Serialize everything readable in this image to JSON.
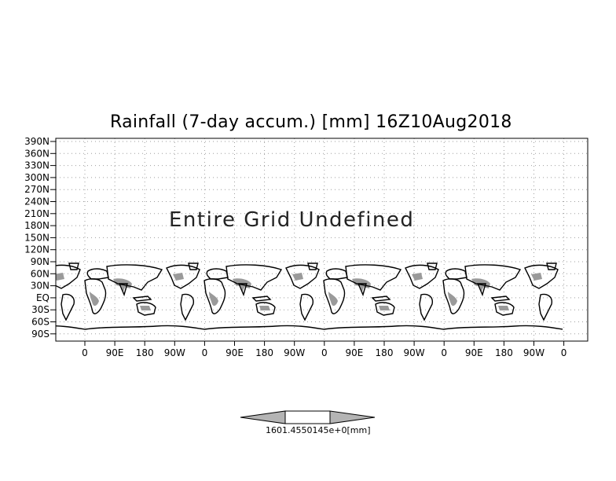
{
  "title": "Rainfall (7-day accum.) [mm] 16Z10Aug2018",
  "undefined_note": "Entire Grid Undefined",
  "y_ticks": [
    "390N",
    "360N",
    "330N",
    "300N",
    "270N",
    "240N",
    "210N",
    "180N",
    "150N",
    "120N",
    "90N",
    "60N",
    "30N",
    "EQ",
    "30S",
    "60S",
    "90S"
  ],
  "x_ticks": [
    "0",
    "90E",
    "180",
    "90W",
    "0",
    "90E",
    "180",
    "90W",
    "0",
    "90E",
    "180",
    "90W",
    "0",
    "90E",
    "180",
    "90W",
    "0"
  ],
  "colorbar": {
    "values_label": "1601.4550145e+0",
    "unit": "[mm]",
    "colors": {
      "ends": "#b4b4b4",
      "middle": "#ffffff",
      "outline": "#000000"
    }
  },
  "colors": {
    "land_shade": "#9a9a9a",
    "grid": "#9e9e9e",
    "coast": "#000000"
  }
}
